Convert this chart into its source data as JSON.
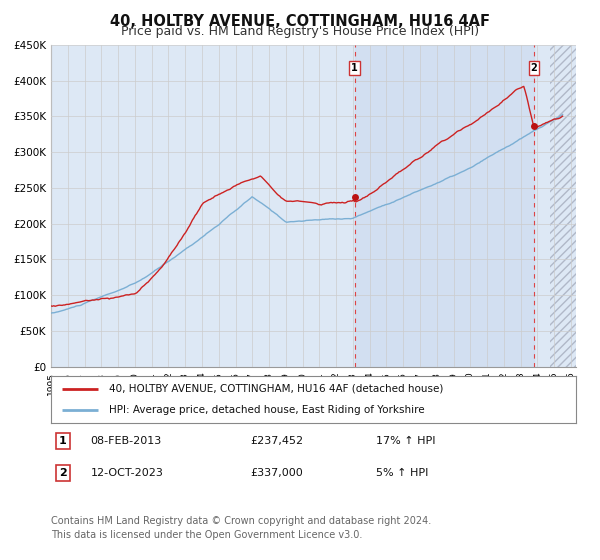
{
  "title": "40, HOLTBY AVENUE, COTTINGHAM, HU16 4AF",
  "subtitle": "Price paid vs. HM Land Registry's House Price Index (HPI)",
  "title_fontsize": 10.5,
  "subtitle_fontsize": 9,
  "xlim_start": 1995.0,
  "xlim_end": 2026.3,
  "ylim_min": 0,
  "ylim_max": 450000,
  "yticks": [
    0,
    50000,
    100000,
    150000,
    200000,
    250000,
    300000,
    350000,
    400000,
    450000
  ],
  "ytick_labels": [
    "£0",
    "£50K",
    "£100K",
    "£150K",
    "£200K",
    "£250K",
    "£300K",
    "£350K",
    "£400K",
    "£450K"
  ],
  "xticks": [
    1995,
    1996,
    1997,
    1998,
    1999,
    2000,
    2001,
    2002,
    2003,
    2004,
    2005,
    2006,
    2007,
    2008,
    2009,
    2010,
    2011,
    2012,
    2013,
    2014,
    2015,
    2016,
    2017,
    2018,
    2019,
    2020,
    2021,
    2022,
    2023,
    2024,
    2025,
    2026
  ],
  "hpi_color": "#7bafd4",
  "property_color": "#cc2222",
  "marker_color": "#bb1111",
  "vline_color": "#dd4444",
  "grid_color": "#cccccc",
  "bg_color": "#dde8f5",
  "hatch_start": 2024.75,
  "sale1_year": 2013.1,
  "sale1_price": 237452,
  "sale1_label": "1",
  "sale1_date": "08-FEB-2013",
  "sale1_hpi": "17% ↑ HPI",
  "sale2_year": 2023.8,
  "sale2_price": 337000,
  "sale2_label": "2",
  "sale2_date": "12-OCT-2023",
  "sale2_hpi": "5% ↑ HPI",
  "legend_property": "40, HOLTBY AVENUE, COTTINGHAM, HU16 4AF (detached house)",
  "legend_hpi": "HPI: Average price, detached house, East Riding of Yorkshire",
  "footer": "Contains HM Land Registry data © Crown copyright and database right 2024.\nThis data is licensed under the Open Government Licence v3.0.",
  "footer_fontsize": 7
}
